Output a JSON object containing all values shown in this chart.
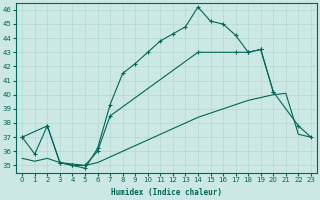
{
  "xlabel": "Humidex (Indice chaleur)",
  "xlim": [
    -0.5,
    23.5
  ],
  "ylim": [
    34.5,
    46.5
  ],
  "yticks": [
    35,
    36,
    37,
    38,
    39,
    40,
    41,
    42,
    43,
    44,
    45,
    46
  ],
  "xticks": [
    0,
    1,
    2,
    3,
    4,
    5,
    6,
    7,
    8,
    9,
    10,
    11,
    12,
    13,
    14,
    15,
    16,
    17,
    18,
    19,
    20,
    21,
    22,
    23
  ],
  "bg_color": "#cce8e4",
  "line_color": "#006655",
  "grid_color": "#b0d4cc",
  "line_a_x": [
    0,
    1,
    2,
    3,
    4,
    5,
    6,
    7,
    8,
    9,
    10,
    11,
    12,
    13,
    14,
    15,
    16,
    17,
    18,
    19,
    20,
    21,
    22,
    23
  ],
  "line_a_y": [
    37.0,
    35.8,
    37.8,
    35.2,
    35.0,
    34.8,
    36.2,
    39.3,
    41.5,
    42.2,
    43.0,
    43.8,
    44.3,
    44.8,
    46.2,
    45.2,
    45.0,
    44.2,
    43.0,
    43.2,
    40.2,
    null,
    null,
    null
  ],
  "line_b_x": [
    0,
    2,
    3,
    4,
    5,
    6,
    7,
    14,
    17,
    18,
    19,
    20,
    22,
    23
  ],
  "line_b_y": [
    37.0,
    37.8,
    35.2,
    35.0,
    35.0,
    36.0,
    38.5,
    43.0,
    43.0,
    43.0,
    43.2,
    40.2,
    37.8,
    37.0
  ],
  "line_c_x": [
    0,
    1,
    2,
    3,
    4,
    5,
    6,
    7,
    8,
    9,
    10,
    11,
    12,
    13,
    14,
    15,
    16,
    17,
    18,
    19,
    20,
    21,
    22,
    23
  ],
  "line_c_y": [
    35.5,
    35.3,
    35.5,
    35.2,
    35.1,
    35.0,
    35.2,
    35.6,
    36.0,
    36.4,
    36.8,
    37.2,
    37.6,
    38.0,
    38.4,
    38.7,
    39.0,
    39.3,
    39.6,
    39.8,
    40.0,
    40.1,
    37.2,
    37.0
  ]
}
